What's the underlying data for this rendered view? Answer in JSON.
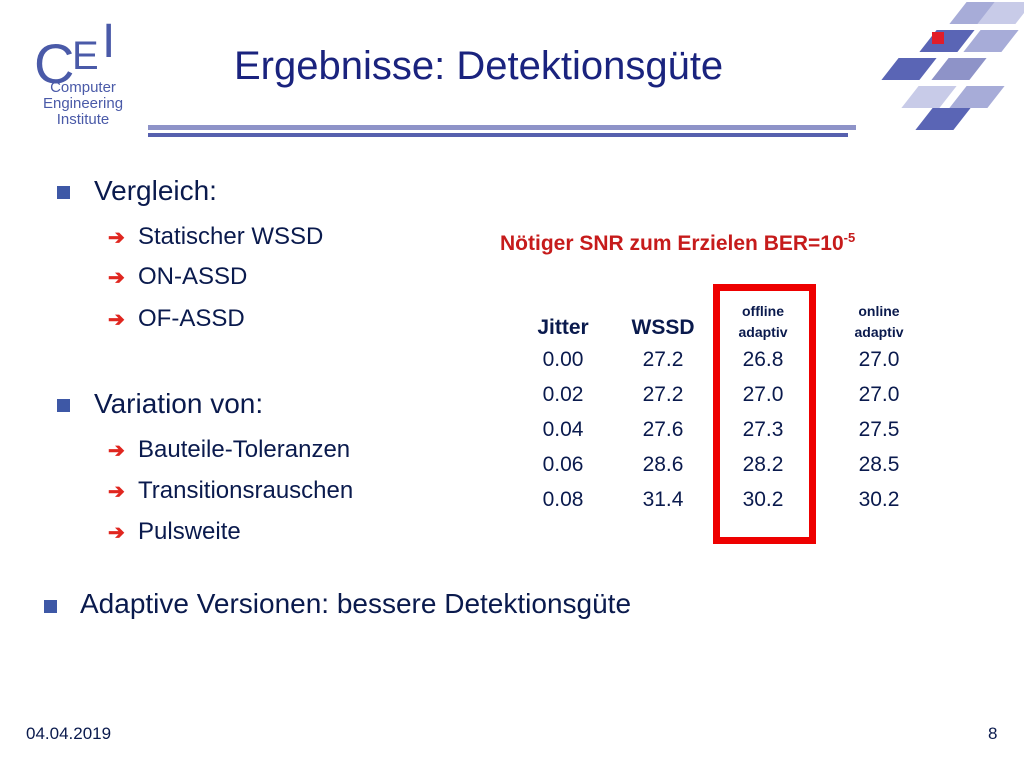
{
  "logo": {
    "letters": [
      "C",
      "E",
      "I"
    ],
    "lines": [
      "Computer",
      "Engineering",
      "Institute"
    ]
  },
  "title": "Ergebnisse: Detektionsgüte",
  "bullets": [
    {
      "label": "Vergleich:",
      "items": [
        "Statischer WSSD",
        "ON-ASSD",
        "OF-ASSD"
      ]
    },
    {
      "label": "Variation von:",
      "items": [
        "Bauteile-Toleranzen",
        "Transitionsrauschen",
        "Pulsweite"
      ]
    }
  ],
  "conclusion": "Adaptive Versionen: bessere Detektionsgüte",
  "table": {
    "title": "Nötiger SNR zum Erzielen BER=10",
    "title_exp": "-5",
    "headers": {
      "jitter": "Jitter",
      "wssd": "WSSD",
      "offline_1": "offline",
      "offline_2": "adaptiv",
      "online_1": "online",
      "online_2": "adaptiv"
    },
    "rows": [
      [
        "0.00",
        "27.2",
        "26.8",
        "27.0"
      ],
      [
        "0.02",
        "27.2",
        "27.0",
        "27.0"
      ],
      [
        "0.04",
        "27.6",
        "27.3",
        "27.5"
      ],
      [
        "0.06",
        "28.6",
        "28.2",
        "28.5"
      ],
      [
        "0.08",
        "31.4",
        "30.2",
        "30.2"
      ]
    ],
    "highlight_color": "#ee0000"
  },
  "footer": {
    "date": "04.04.2019",
    "page": "8"
  },
  "colors": {
    "title": "#1a237e",
    "bullet": "#3e58a6",
    "arrow": "#e0261f",
    "table_title": "#c61b1b"
  }
}
